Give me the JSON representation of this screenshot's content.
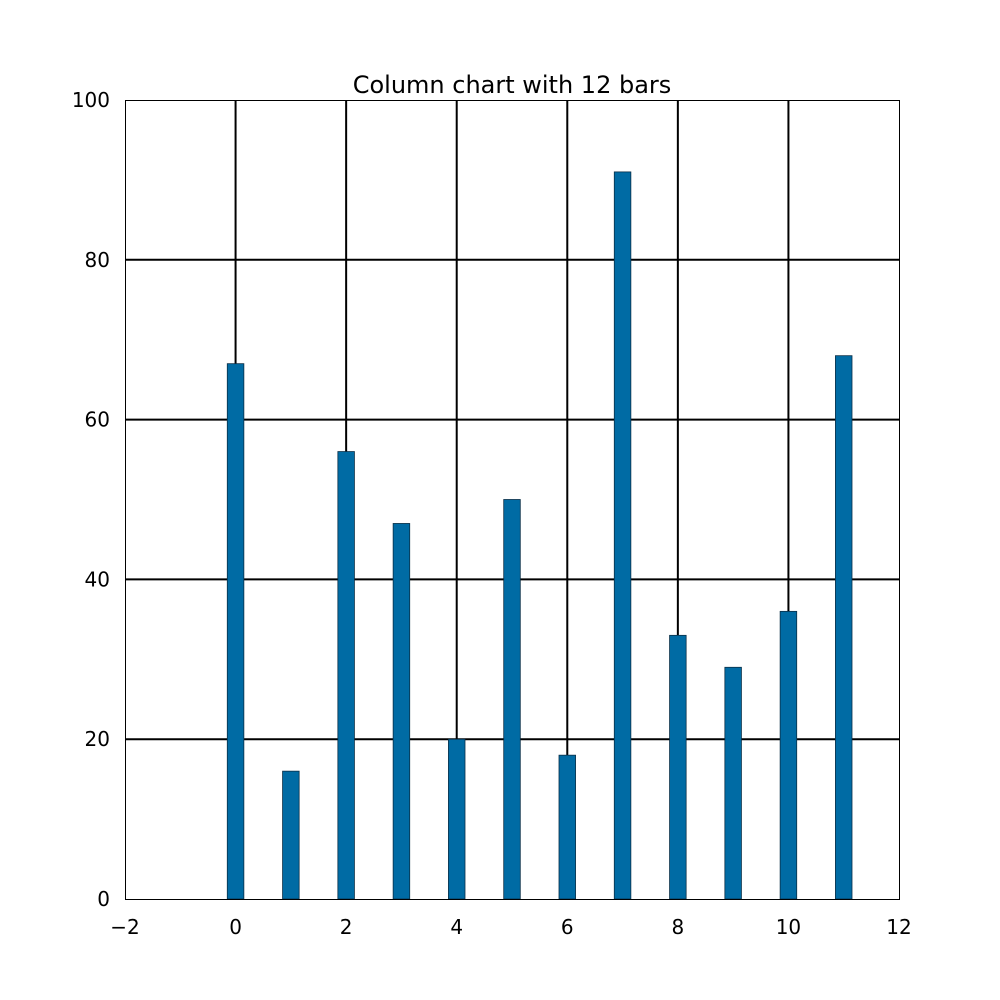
{
  "chart_data": {
    "type": "bar",
    "title": "Column chart with 12 bars",
    "xlabel": "",
    "ylabel": "",
    "x": [
      0,
      1,
      2,
      3,
      4,
      5,
      6,
      7,
      8,
      9,
      10,
      11
    ],
    "values": [
      67,
      16,
      56,
      47,
      20,
      50,
      18,
      91,
      33,
      29,
      36,
      68
    ],
    "xlim": [
      -2,
      12
    ],
    "ylim": [
      0,
      100
    ],
    "xticks": [
      -2,
      0,
      2,
      4,
      6,
      8,
      10,
      12
    ],
    "xtick_labels": [
      "−2",
      "0",
      "2",
      "4",
      "6",
      "8",
      "10",
      "12"
    ],
    "yticks": [
      0,
      20,
      40,
      60,
      80,
      100
    ],
    "ytick_labels": [
      "0",
      "20",
      "40",
      "60",
      "80",
      "100"
    ],
    "bar_width": 0.3,
    "grid": true,
    "legend": "none",
    "bar_color": "#006ba4"
  }
}
